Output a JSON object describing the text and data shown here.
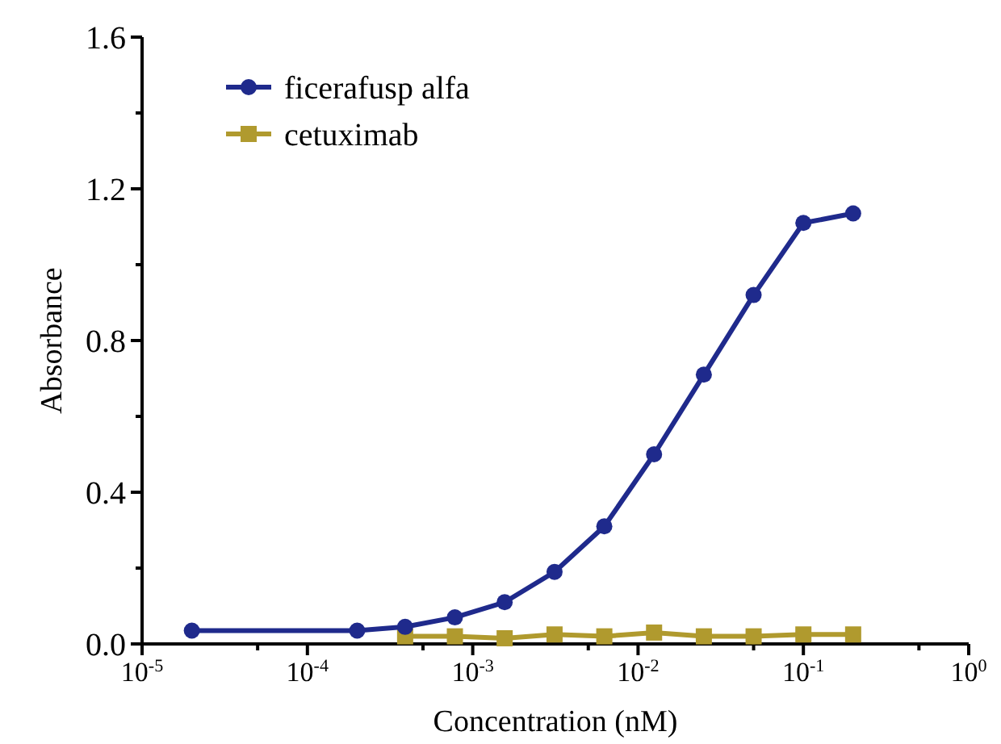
{
  "chart_data": {
    "type": "line",
    "xlabel": "Concentration (nM)",
    "ylabel": "Absorbance",
    "log": "x",
    "x": [
      2e-05,
      0.0002,
      0.00039,
      0.00078,
      0.00156,
      0.003125,
      0.00625,
      0.0125,
      0.025,
      0.05,
      0.1,
      0.2
    ],
    "series": [
      {
        "name": "ficerafusp alfa",
        "color": "#1f2a8c",
        "marker": "circle",
        "values": [
          0.035,
          0.035,
          0.045,
          0.07,
          0.11,
          0.19,
          0.31,
          0.5,
          0.71,
          0.92,
          1.11,
          1.135
        ]
      },
      {
        "name": "cetuximab",
        "color": "#b09a2e",
        "marker": "square",
        "values": [
          null,
          null,
          0.02,
          0.02,
          0.015,
          0.025,
          0.02,
          0.03,
          0.02,
          0.02,
          0.025,
          0.025
        ]
      }
    ],
    "xlim": [
      1e-05,
      1
    ],
    "xticks": [
      {
        "value": 1e-05,
        "label": "10$^{-5}$"
      },
      {
        "value": 5e-05,
        "label": null
      },
      {
        "value": 0.0001,
        "label": "10$^{-4}$"
      },
      {
        "value": 0.0005,
        "label": null
      },
      {
        "value": 0.001,
        "label": "10$^{-3}$"
      },
      {
        "value": 0.005,
        "label": null
      },
      {
        "value": 0.01,
        "label": "10$^{-2}$"
      },
      {
        "value": 0.05,
        "label": null
      },
      {
        "value": 0.1,
        "label": "10$^{-1}$"
      },
      {
        "value": 0.5,
        "label": null
      },
      {
        "value": 1,
        "label": "10$^{0}$"
      }
    ],
    "ylim": [
      0,
      1.6
    ],
    "yticks": [
      {
        "value": 0,
        "label": "0.0"
      },
      {
        "value": 0.2,
        "label": null
      },
      {
        "value": 0.4,
        "label": "0.4"
      },
      {
        "value": 0.6,
        "label": null
      },
      {
        "value": 0.8,
        "label": "0.8"
      },
      {
        "value": 1.0,
        "label": null
      },
      {
        "value": 1.2,
        "label": "1.2"
      },
      {
        "value": 1.4,
        "label": null
      },
      {
        "value": 1.6,
        "label": "1.6"
      }
    ],
    "legend": "top left",
    "grid": false,
    "line_style": "solid"
  }
}
